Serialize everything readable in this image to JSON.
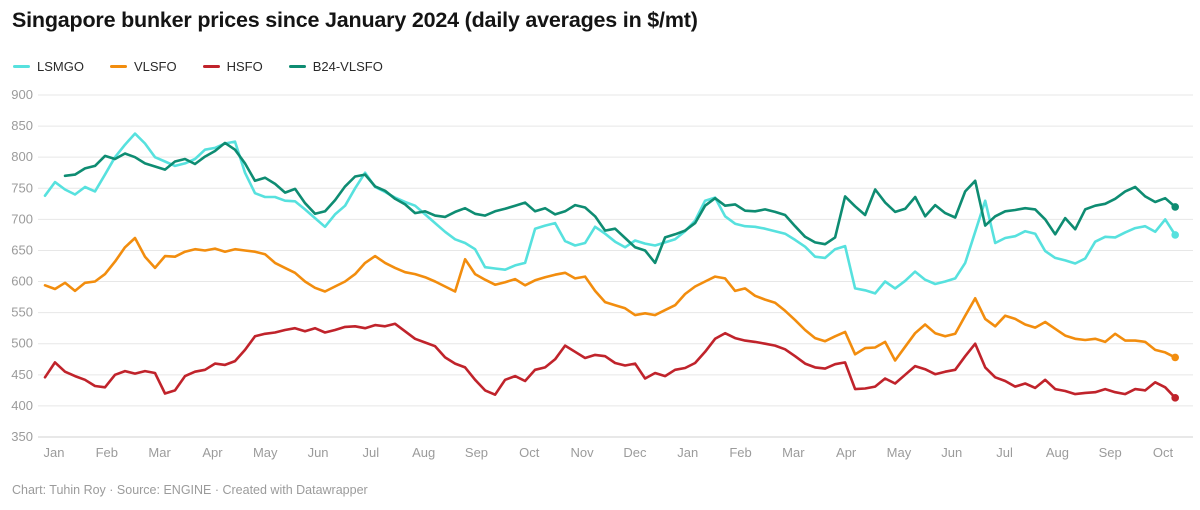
{
  "header": {
    "title": "Singapore bunker prices since January 2024 (daily averages in $/mt)"
  },
  "footer": {
    "text": "Chart: Tuhin Roy · Source: ENGINE · Created with Datawrapper"
  },
  "chart_data": {
    "type": "line",
    "title": "Singapore bunker prices since January 2024 (daily averages in $/mt)",
    "unit": "$/mt",
    "ylim": [
      350,
      900
    ],
    "y_ticks": [
      900,
      850,
      800,
      750,
      700,
      650,
      600,
      550,
      500,
      450,
      400,
      350
    ],
    "x_months": [
      "Jan",
      "Feb",
      "Mar",
      "Apr",
      "May",
      "Jun",
      "Jul",
      "Aug",
      "Sep",
      "Oct",
      "Nov",
      "Dec",
      "Jan",
      "Feb",
      "Mar",
      "Apr",
      "May",
      "Jun",
      "Jul",
      "Aug",
      "Sep",
      "Oct"
    ],
    "x_start": "Jan 2024",
    "x_end": "Oct 2025",
    "grid": "horizontal",
    "legend_position": "top-left",
    "sample_interval_months": 0.18939,
    "axis_color": "#9b9b9b",
    "grid_color": "#e7e7e7",
    "baseline_color": "#d2d2d2",
    "series": [
      {
        "name": "LSMGO",
        "color": "#57e1de",
        "t0": 0,
        "values": [
          738,
          760,
          748,
          740,
          752,
          745,
          772,
          800,
          820,
          838,
          822,
          800,
          793,
          786,
          790,
          797,
          812,
          815,
          822,
          825,
          775,
          742,
          736,
          736,
          730,
          729,
          716,
          702,
          688,
          708,
          722,
          750,
          775,
          752,
          744,
          735,
          728,
          722,
          708,
          694,
          680,
          668,
          662,
          652,
          623,
          621,
          619,
          626,
          630,
          685,
          690,
          694,
          665,
          658,
          662,
          688,
          677,
          664,
          655,
          666,
          661,
          658,
          663,
          668,
          681,
          698,
          730,
          735,
          705,
          693,
          689,
          688,
          685,
          681,
          677,
          667,
          656,
          640,
          638,
          652,
          657,
          589,
          586,
          581,
          600,
          589,
          601,
          616,
          603,
          596,
          600,
          605,
          630,
          680,
          730,
          662,
          670,
          673,
          681,
          677,
          649,
          638,
          634,
          629,
          637,
          664,
          672,
          671,
          679,
          686,
          689,
          680,
          700,
          675
        ]
      },
      {
        "name": "VLSFO",
        "color": "#f28d0e",
        "t0": 0,
        "values": [
          594,
          588,
          598,
          585,
          598,
          600,
          612,
          632,
          655,
          670,
          640,
          622,
          641,
          640,
          648,
          652,
          650,
          653,
          648,
          652,
          650,
          648,
          644,
          630,
          622,
          614,
          600,
          590,
          584,
          592,
          600,
          612,
          630,
          641,
          630,
          622,
          615,
          612,
          607,
          600,
          592,
          584,
          636,
          612,
          603,
          595,
          599,
          604,
          594,
          602,
          607,
          611,
          614,
          605,
          608,
          585,
          567,
          562,
          557,
          546,
          549,
          546,
          554,
          562,
          580,
          592,
          600,
          608,
          605,
          585,
          589,
          577,
          571,
          566,
          553,
          538,
          522,
          509,
          504,
          512,
          519,
          483,
          493,
          494,
          503,
          473,
          495,
          517,
          531,
          517,
          512,
          516,
          545,
          573,
          540,
          528,
          545,
          540,
          531,
          526,
          535,
          524,
          513,
          508,
          506,
          508,
          503,
          516,
          505,
          505,
          503,
          490,
          486,
          478
        ]
      },
      {
        "name": "HSFO",
        "color": "#c0232b",
        "t0": 0,
        "values": [
          446,
          470,
          455,
          448,
          442,
          432,
          430,
          450,
          456,
          452,
          456,
          453,
          420,
          425,
          448,
          455,
          458,
          468,
          466,
          472,
          490,
          512,
          516,
          518,
          522,
          525,
          520,
          525,
          518,
          522,
          527,
          528,
          525,
          530,
          528,
          532,
          520,
          508,
          502,
          496,
          478,
          468,
          462,
          442,
          425,
          418,
          442,
          448,
          440,
          458,
          462,
          475,
          497,
          487,
          477,
          482,
          480,
          469,
          465,
          468,
          444,
          453,
          448,
          458,
          461,
          469,
          487,
          508,
          517,
          509,
          505,
          503,
          500,
          497,
          491,
          480,
          468,
          462,
          460,
          467,
          470,
          427,
          428,
          431,
          444,
          436,
          450,
          464,
          459,
          451,
          455,
          458,
          480,
          500,
          462,
          446,
          440,
          431,
          436,
          429,
          442,
          427,
          424,
          419,
          421,
          422,
          427,
          422,
          419,
          427,
          425,
          438,
          430,
          413
        ]
      },
      {
        "name": "B24-VLSFO",
        "color": "#0e8c72",
        "t0": 0.379,
        "values": [
          770,
          772,
          782,
          786,
          802,
          797,
          806,
          800,
          790,
          785,
          780,
          793,
          797,
          789,
          801,
          810,
          823,
          812,
          790,
          762,
          767,
          757,
          743,
          749,
          726,
          709,
          713,
          731,
          753,
          769,
          772,
          753,
          746,
          733,
          724,
          710,
          713,
          706,
          704,
          712,
          718,
          709,
          706,
          713,
          717,
          722,
          727,
          713,
          718,
          708,
          713,
          723,
          719,
          705,
          682,
          685,
          670,
          655,
          650,
          630,
          671,
          676,
          682,
          694,
          722,
          734,
          722,
          724,
          714,
          713,
          716,
          712,
          707,
          689,
          672,
          663,
          660,
          671,
          737,
          721,
          707,
          748,
          727,
          712,
          717,
          736,
          705,
          723,
          710,
          703,
          745,
          762,
          690,
          705,
          713,
          715,
          718,
          716,
          700,
          676,
          702,
          684,
          716,
          722,
          725,
          733,
          745,
          752,
          737,
          728,
          734,
          720
        ]
      }
    ]
  }
}
